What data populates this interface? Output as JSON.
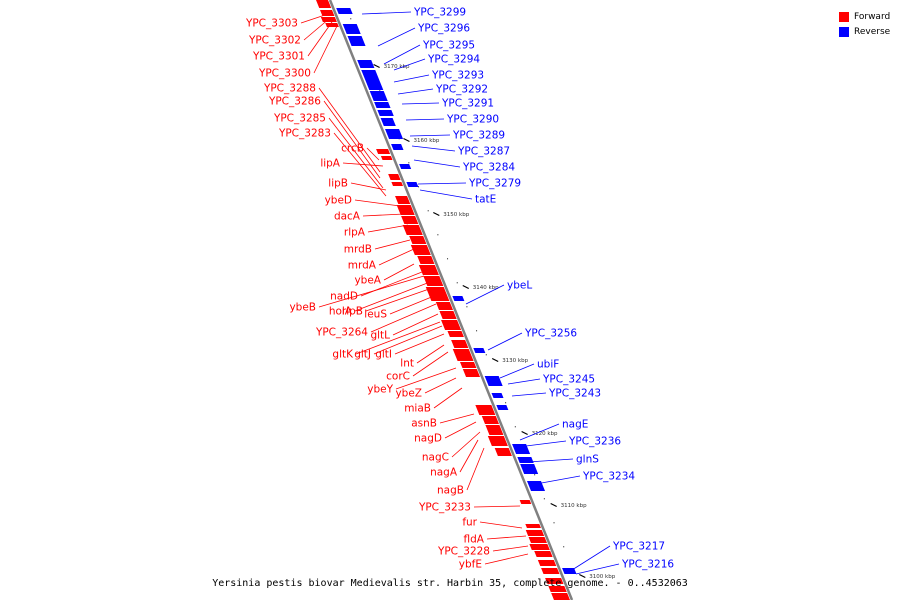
{
  "caption": "Yersinia pestis biovar Medievalis str. Harbin 35, complete genome. - 0..4532063",
  "colors": {
    "forward": "#ff0000",
    "reverse": "#0000ff",
    "backbone": "#808080"
  },
  "legend": [
    {
      "label": "Forward",
      "color": "#ff0000"
    },
    {
      "label": "Reverse",
      "color": "#0000ff"
    }
  ],
  "ticks": [
    "3170 kbp",
    "3160 kbp",
    "3150 kbp",
    "3140 kbp",
    "3130 kbp",
    "3120 kbp",
    "3110 kbp",
    "3100 kbp"
  ],
  "forward_labels": [
    "YPC_3303",
    "YPC_3302",
    "YPC_3301",
    "YPC_3300",
    "YPC_3288",
    "YPC_3286",
    "YPC_3285",
    "YPC_3283",
    "crcB",
    "lipA",
    "lipB",
    "ybeD",
    "dacA",
    "rlpA",
    "mrdB",
    "mrdA",
    "ybeA",
    "nadD",
    "ybeB",
    "holA",
    "rlpB",
    "leuS",
    "YPC_3264",
    "gltL",
    "gltK",
    "gltJ",
    "gltI",
    "lnt",
    "corC",
    "ybeY",
    "ybeZ",
    "miaB",
    "asnB",
    "nagD",
    "nagC",
    "nagA",
    "nagB",
    "YPC_3233",
    "fur",
    "fldA",
    "YPC_3228",
    "ybfE"
  ],
  "reverse_labels": [
    "YPC_3299",
    "YPC_3296",
    "YPC_3295",
    "YPC_3294",
    "YPC_3293",
    "YPC_3292",
    "YPC_3291",
    "YPC_3290",
    "YPC_3289",
    "YPC_3287",
    "YPC_3284",
    "YPC_3279",
    "tatE",
    "ybeL",
    "YPC_3256",
    "ubiF",
    "YPC_3245",
    "YPC_3243",
    "nagE",
    "YPC_3236",
    "glnS",
    "YPC_3234",
    "YPC_3217",
    "YPC_3216"
  ]
}
